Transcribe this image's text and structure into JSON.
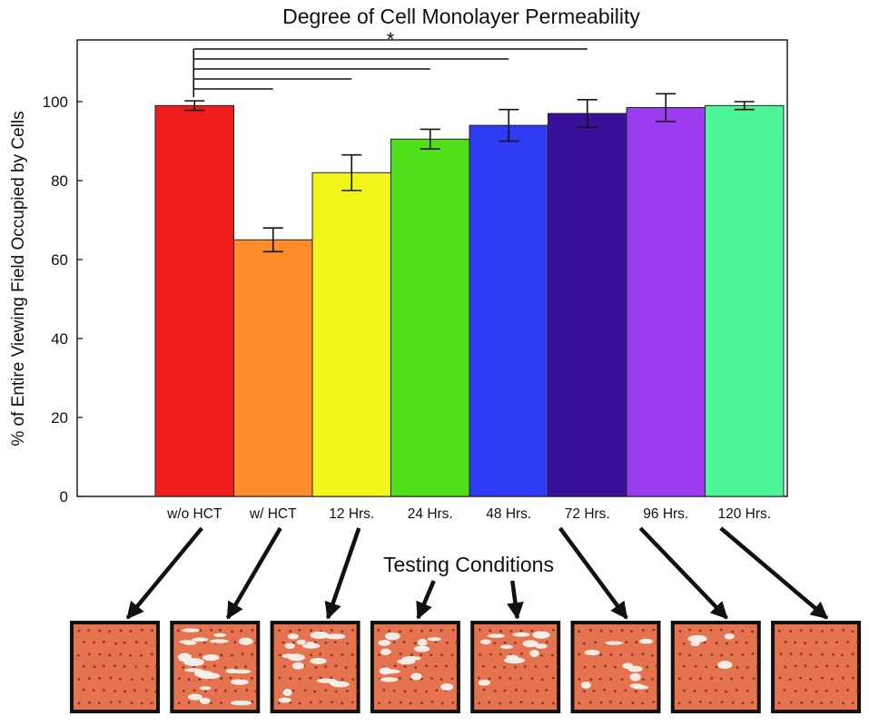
{
  "chart_data": {
    "type": "bar",
    "title": "Degree of Cell Monolayer Permeability",
    "xlabel": "Testing Conditions",
    "ylabel": "% of Entire Viewing Field Occupied by Cells",
    "ylim": [
      0,
      100
    ],
    "yticks": [
      "0",
      "20",
      "40",
      "60",
      "80",
      "100"
    ],
    "categories": [
      "w/o HCT",
      "w/ HCT",
      "12 Hrs.",
      "24 Hrs.",
      "48 Hrs.",
      "72 Hrs.",
      "96 Hrs.",
      "120 Hrs."
    ],
    "values": [
      99,
      65,
      82,
      90.5,
      94,
      97,
      98.5,
      99
    ],
    "errors": [
      1.2,
      3,
      4.5,
      2.5,
      4,
      3.5,
      3.5,
      1
    ],
    "colors": [
      "#ee1c1c",
      "#ff8c2a",
      "#f2f519",
      "#4fe01a",
      "#2c3cf2",
      "#38109a",
      "#9b3cf0",
      "#4ef598"
    ],
    "significance": {
      "label": "*",
      "reference": 0,
      "compared": [
        1,
        2,
        3,
        4,
        5
      ]
    },
    "grid": false,
    "legend": "none",
    "micrographs": [
      {
        "voids": 0
      },
      {
        "voids": 22
      },
      {
        "voids": 16
      },
      {
        "voids": 13
      },
      {
        "voids": 11
      },
      {
        "voids": 9
      },
      {
        "voids": 4
      },
      {
        "voids": 0
      }
    ],
    "micrograph_colors": {
      "cell": "#e5734f",
      "nucleus": "#6b2215",
      "void": "#f4f2ee",
      "frame": "#111111"
    }
  }
}
